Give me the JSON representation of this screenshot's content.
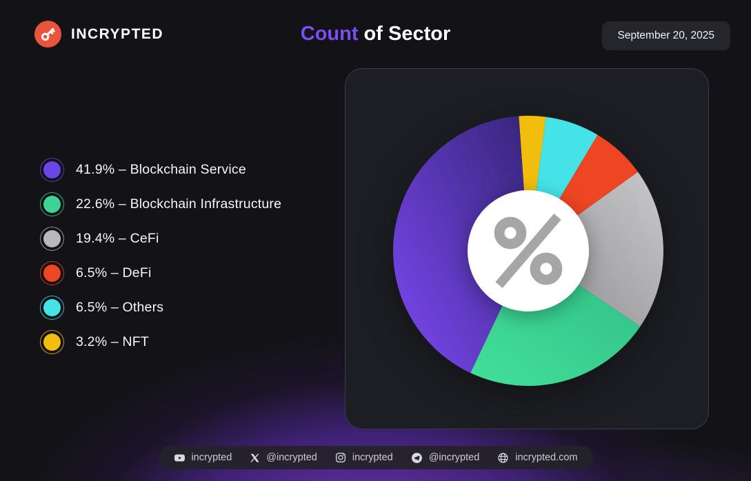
{
  "header": {
    "brand": "INCRYPTED",
    "title_highlight": "Count",
    "title_rest": " of Sector",
    "date": "September 20, 2025"
  },
  "colors": {
    "accent_purple": "#7b4df5",
    "logo_orange": "#e9543c",
    "card_bg": "#1d1e23",
    "glow_purple": "#5a2c97"
  },
  "chart_data": {
    "type": "pie",
    "subtype": "donut",
    "title": "Count of Sector",
    "legend_position": "left",
    "donut_center_symbol": "percent",
    "start_angle_deg": -4,
    "series": [
      {
        "name": "Blockchain Service",
        "value": 41.9,
        "pct_label": "41.9%",
        "color": "#6a45e8",
        "grad_from": "#7c49f5",
        "grad_to": "#372578",
        "grad_dir": [
          0,
          1,
          1,
          0
        ]
      },
      {
        "name": "Blockchain Infrastructure",
        "value": 22.6,
        "pct_label": "22.6%",
        "color": "#3ed395",
        "grad_from": "#44df9b",
        "grad_to": "#2fbe85",
        "grad_dir": [
          0,
          1,
          1,
          0
        ]
      },
      {
        "name": "CeFi",
        "value": 19.4,
        "pct_label": "19.4%",
        "color": "#b9b9bb",
        "grad_from": "#c9c9cb",
        "grad_to": "#8d8d90",
        "grad_dir": [
          1,
          0,
          0,
          1
        ]
      },
      {
        "name": "DeFi",
        "value": 6.5,
        "pct_label": "6.5%",
        "color": "#ee4623"
      },
      {
        "name": "Others",
        "value": 6.5,
        "pct_label": "6.5%",
        "color": "#45e3e8"
      },
      {
        "name": "NFT",
        "value": 3.2,
        "pct_label": "3.2%",
        "color": "#f2be0e"
      }
    ],
    "separator": "–"
  },
  "footer": {
    "items": [
      {
        "icon": "youtube-icon",
        "label": "incrypted"
      },
      {
        "icon": "x-icon",
        "label": "@incrypted"
      },
      {
        "icon": "instagram-icon",
        "label": "incrypted"
      },
      {
        "icon": "telegram-icon",
        "label": "@incrypted"
      },
      {
        "icon": "globe-icon",
        "label": "incrypted.com"
      }
    ]
  }
}
